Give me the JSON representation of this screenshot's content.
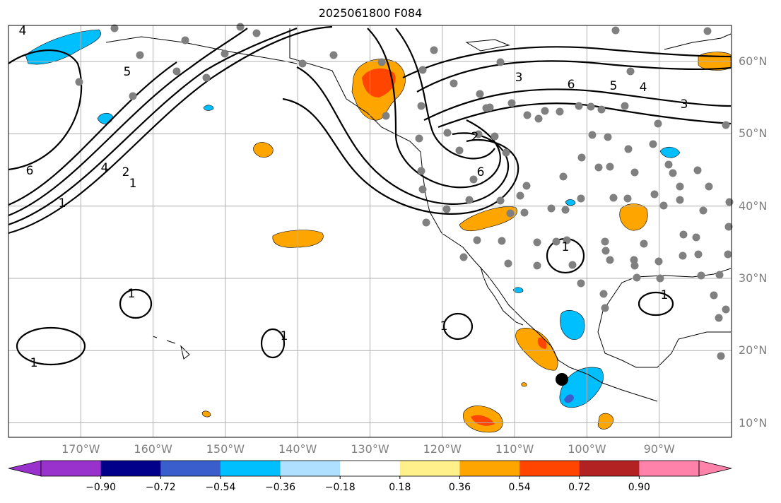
{
  "title": "2025061800 F084",
  "map": {
    "region": "North-east Pacific and North America",
    "projection": "equirectangular",
    "lon_range": [
      -180,
      -80
    ],
    "lat_range": [
      8,
      65
    ],
    "gridlines": true,
    "contour_color": "#000000",
    "land_color": "#ffffff",
    "station_marker_color": "#808080",
    "highlight_marker_color": "#000000",
    "lat_labels": [
      "60°N",
      "50°N",
      "40°N",
      "30°N",
      "20°N",
      "10°N"
    ],
    "lon_labels": [
      "170°W",
      "160°W",
      "150°W",
      "140°W",
      "130°W",
      "120°W",
      "110°W",
      "100°W",
      "90°W"
    ],
    "contour_labels": [
      "4",
      "5",
      "6",
      "4",
      "2",
      "1",
      "3",
      "6",
      "5",
      "4",
      "3",
      "2",
      "6",
      "1",
      "1",
      "1",
      "1",
      "1",
      "1",
      "1"
    ]
  },
  "colorbar": {
    "ticks": [
      "−0.90",
      "−0.72",
      "−0.54",
      "−0.36",
      "−0.18",
      "0.18",
      "0.36",
      "0.54",
      "0.72",
      "0.90"
    ],
    "colors": [
      "#9932cc",
      "#00008b",
      "#3a5fcd",
      "#00bfff",
      "#b0e0ff",
      "#ffffff",
      "#fff08c",
      "#ffa500",
      "#ff4500",
      "#b22222",
      "#ff82ab"
    ],
    "extend": "both"
  }
}
